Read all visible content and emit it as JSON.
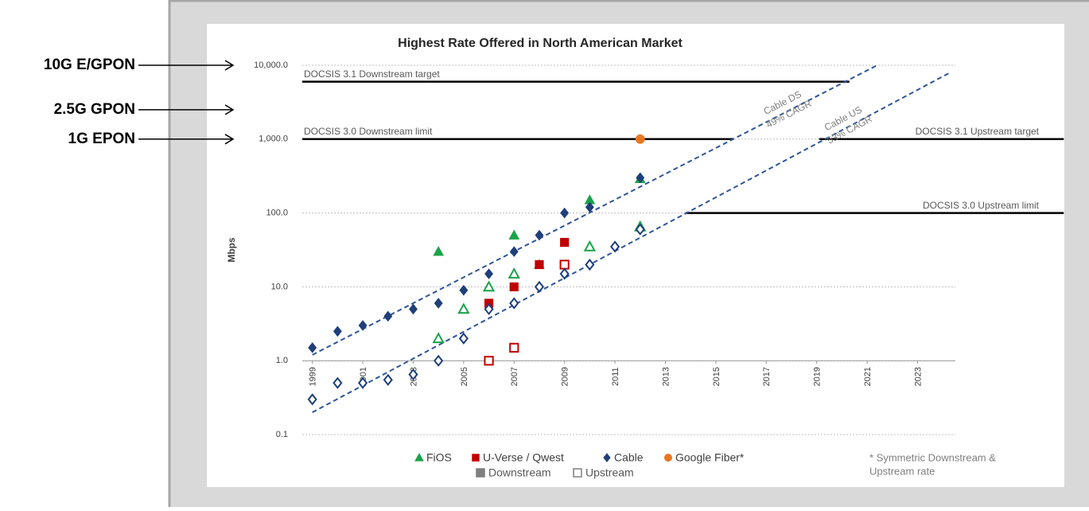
{
  "side_labels": [
    {
      "label": "10G E/GPON",
      "value": 10000
    },
    {
      "label": "2.5G GPON",
      "value": 2500
    },
    {
      "label": "1G EPON",
      "value": 1000
    }
  ],
  "chart_data": {
    "type": "scatter",
    "title": "Highest Rate Offered in North American Market",
    "ylabel": "Mbps",
    "log_y": true,
    "grid": true,
    "x_axis_at": 1,
    "xlim": [
      1998.6,
      2024.5
    ],
    "ylim": [
      0.1,
      10000
    ],
    "xticks": [
      1999,
      2001,
      2003,
      2005,
      2007,
      2009,
      2011,
      2013,
      2015,
      2017,
      2019,
      2021,
      2023
    ],
    "yticks": [
      0.1,
      {
        "value": 1,
        "label": "1.0"
      },
      {
        "value": 10,
        "label": "10.0"
      },
      {
        "value": 100,
        "label": "100.0"
      },
      {
        "value": 1000,
        "label": "1,000.0"
      },
      {
        "value": 10000,
        "label": "10,000.0"
      }
    ],
    "providers": [
      {
        "name": "FiOS",
        "color": "#1aa34a",
        "marker": "triangle"
      },
      {
        "name": "U-Verse / Qwest",
        "color": "#c00000",
        "marker": "square"
      },
      {
        "name": "Cable",
        "color": "#1f3f7a",
        "marker": "diamond"
      },
      {
        "name": "Google Fiber*",
        "color": "#e87722",
        "marker": "circle"
      }
    ],
    "styles": [
      {
        "name": "Downstream",
        "filled": true
      },
      {
        "name": "Upstream",
        "filled": false
      }
    ],
    "series": [
      {
        "provider": 0,
        "style": 0,
        "x": [
          2004,
          2007,
          2008,
          2010,
          2012
        ],
        "values": [
          30,
          50,
          20,
          150,
          290
        ]
      },
      {
        "provider": 0,
        "style": 1,
        "x": [
          2004,
          2005,
          2006,
          2007,
          2010,
          2012
        ],
        "values": [
          2,
          5,
          10,
          15,
          35,
          65
        ]
      },
      {
        "provider": 1,
        "style": 0,
        "x": [
          2006,
          2007,
          2008,
          2009
        ],
        "values": [
          6,
          10,
          20,
          40
        ]
      },
      {
        "provider": 1,
        "style": 1,
        "x": [
          2006,
          2007,
          2009
        ],
        "values": [
          1,
          1.5,
          20
        ]
      },
      {
        "provider": 2,
        "style": 0,
        "x": [
          1999,
          2000,
          2001,
          2002,
          2003,
          2004,
          2005,
          2006,
          2007,
          2008,
          2009,
          2010,
          2012
        ],
        "values": [
          1.5,
          2.5,
          3,
          4,
          5,
          6,
          9,
          15,
          30,
          50,
          100,
          120,
          300
        ]
      },
      {
        "provider": 2,
        "style": 1,
        "x": [
          1999,
          2000,
          2001,
          2002,
          2003,
          2004,
          2005,
          2006,
          2007,
          2008,
          2009,
          2010,
          2011,
          2012
        ],
        "values": [
          0.3,
          0.5,
          0.5,
          0.55,
          0.65,
          1,
          2,
          5,
          6,
          10,
          15,
          20,
          35,
          60
        ]
      },
      {
        "provider": 3,
        "style": 0,
        "x": [
          2012
        ],
        "values": [
          1000
        ]
      }
    ],
    "reference_lines": [
      {
        "label": "DOCSIS 3.1 Downstream target",
        "value": 6000,
        "x": [
          1998.6,
          2020.3
        ],
        "label_side": "left"
      },
      {
        "label": "DOCSIS 3.0 Downstream limit",
        "value": 1000,
        "x": [
          1998.6,
          2015.7
        ],
        "label_side": "left"
      },
      {
        "label": "DOCSIS 3.1 Upstream target",
        "value": 1000,
        "x": [
          2019.1,
          2028.8
        ],
        "label_side": "right"
      },
      {
        "label": "DOCSIS 3.0 Upstream limit",
        "value": 100,
        "x": [
          2013.8,
          2028.8
        ],
        "label_side": "right"
      }
    ],
    "trends": [
      {
        "label": [
          "Cable DS",
          "49% CAGR"
        ],
        "x": [
          1999,
          2021.4
        ],
        "y": [
          1.2,
          10000
        ],
        "color": "#2f5597"
      },
      {
        "label": [
          "Cable US",
          "53% CAGR"
        ],
        "x": [
          1999,
          2024.3
        ],
        "y": [
          0.2,
          8000
        ],
        "color": "#2f5597"
      }
    ],
    "footnote": [
      "* Symmetric Downstream &",
      "Upstream rate"
    ]
  }
}
